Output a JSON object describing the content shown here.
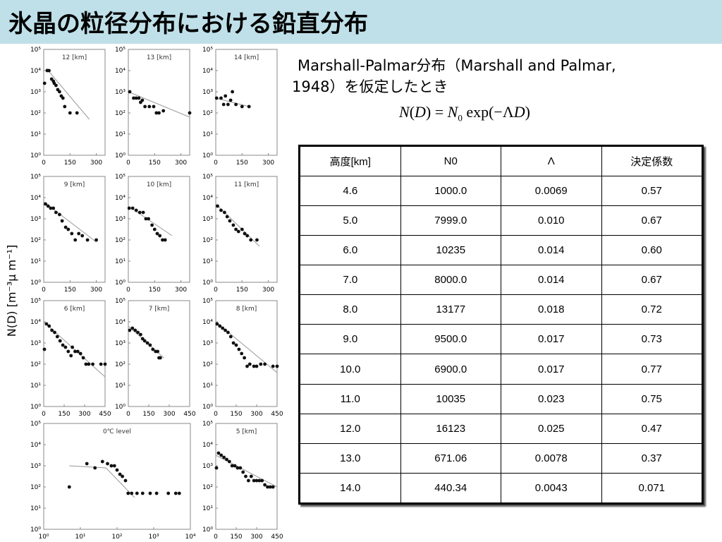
{
  "title": "氷晶の粒径分布における鉛直分布",
  "description": {
    "line1": "Marshall-Palmar分布（Marshall and Palmar,",
    "line2": "1948）を仮定したとき"
  },
  "formula": {
    "lhs_fn": "N",
    "lhs_arg": "D",
    "rhs_coef": "N",
    "rhs_sub": "0",
    "rhs_exp": "exp",
    "rhs_lambda": "Λ",
    "rhs_var": "D"
  },
  "table": {
    "headers": [
      "高度[km]",
      "N0",
      "Λ",
      "決定係数"
    ],
    "rows": [
      [
        "4.6",
        "1000.0",
        "0.0069",
        "0.57"
      ],
      [
        "5.0",
        "7999.0",
        "0.010",
        "0.67"
      ],
      [
        "6.0",
        "10235",
        "0.014",
        "0.60"
      ],
      [
        "7.0",
        "8000.0",
        "0.014",
        "0.67"
      ],
      [
        "8.0",
        "13177",
        "0.018",
        "0.72"
      ],
      [
        "9.0",
        "9500.0",
        "0.017",
        "0.73"
      ],
      [
        "10.0",
        "6900.0",
        "0.017",
        "0.77"
      ],
      [
        "11.0",
        "10035",
        "0.023",
        "0.75"
      ],
      [
        "12.0",
        "16123",
        "0.025",
        "0.47"
      ],
      [
        "13.0",
        "671.06",
        "0.0078",
        "0.37"
      ],
      [
        "14.0",
        "440.34",
        "0.0043",
        "0.071"
      ]
    ]
  },
  "chart_data": {
    "type": "scatter",
    "ylabel": "N(D) [m⁻³μ m⁻¹]",
    "y_scale": "log",
    "y_tick_labels": [
      "10⁰",
      "10¹",
      "10²",
      "10³",
      "10⁴",
      "10⁵"
    ],
    "panels": [
      {
        "label": "12 [km]",
        "x_scale": "linear",
        "xlim": [
          0,
          350
        ],
        "x_ticks": [
          "0",
          "150",
          "300"
        ],
        "points": [
          [
            5,
            3.4
          ],
          [
            20,
            4.0
          ],
          [
            30,
            4.0
          ],
          [
            45,
            3.6
          ],
          [
            55,
            3.5
          ],
          [
            60,
            3.4
          ],
          [
            70,
            3.3
          ],
          [
            80,
            3.1
          ],
          [
            90,
            3.0
          ],
          [
            100,
            2.8
          ],
          [
            110,
            2.7
          ],
          [
            120,
            2.3
          ],
          [
            150,
            2.0
          ],
          [
            190,
            2.0
          ]
        ],
        "fit": [
          [
            15,
            4.1
          ],
          [
            260,
            1.7
          ]
        ]
      },
      {
        "label": "13 [km]",
        "x_scale": "linear",
        "xlim": [
          0,
          350
        ],
        "x_ticks": [
          "0",
          "150",
          "300"
        ],
        "points": [
          [
            8,
            3.0
          ],
          [
            30,
            2.7
          ],
          [
            45,
            2.7
          ],
          [
            60,
            2.7
          ],
          [
            70,
            2.5
          ],
          [
            80,
            2.6
          ],
          [
            95,
            2.3
          ],
          [
            120,
            2.3
          ],
          [
            145,
            2.3
          ],
          [
            160,
            2.0
          ],
          [
            175,
            2.0
          ],
          [
            200,
            2.1
          ],
          [
            350,
            2.0
          ]
        ],
        "fit": [
          [
            0,
            3.0
          ],
          [
            350,
            1.8
          ]
        ]
      },
      {
        "label": "14 [km]",
        "x_scale": "linear",
        "xlim": [
          0,
          350
        ],
        "x_ticks": [
          "0",
          "150",
          "300"
        ],
        "points": [
          [
            5,
            2.7
          ],
          [
            30,
            2.7
          ],
          [
            45,
            2.4
          ],
          [
            55,
            2.8
          ],
          [
            70,
            2.4
          ],
          [
            85,
            2.6
          ],
          [
            95,
            3.0
          ],
          [
            115,
            2.4
          ],
          [
            150,
            2.3
          ],
          [
            190,
            2.3
          ]
        ],
        "fit": [
          [
            0,
            2.7
          ],
          [
            190,
            2.3
          ]
        ]
      },
      {
        "label": "9 [km]",
        "x_scale": "linear",
        "xlim": [
          0,
          350
        ],
        "x_ticks": [
          "0",
          "150",
          "300"
        ],
        "points": [
          [
            10,
            3.7
          ],
          [
            25,
            3.6
          ],
          [
            40,
            3.5
          ],
          [
            55,
            3.5
          ],
          [
            70,
            3.3
          ],
          [
            90,
            3.2
          ],
          [
            105,
            2.9
          ],
          [
            125,
            2.6
          ],
          [
            140,
            2.5
          ],
          [
            160,
            2.3
          ],
          [
            180,
            2.0
          ],
          [
            200,
            2.3
          ],
          [
            220,
            2.2
          ],
          [
            250,
            2.0
          ],
          [
            300,
            2.0
          ]
        ],
        "fit": [
          [
            0,
            3.8
          ],
          [
            300,
            1.9
          ]
        ]
      },
      {
        "label": "10 [km]",
        "x_scale": "linear",
        "xlim": [
          0,
          350
        ],
        "x_ticks": [
          "0",
          "150",
          "300"
        ],
        "points": [
          [
            5,
            3.5
          ],
          [
            25,
            3.5
          ],
          [
            45,
            3.4
          ],
          [
            65,
            3.3
          ],
          [
            85,
            3.3
          ],
          [
            100,
            3.0
          ],
          [
            115,
            3.0
          ],
          [
            135,
            2.7
          ],
          [
            150,
            2.5
          ],
          [
            165,
            2.3
          ],
          [
            180,
            2.2
          ],
          [
            195,
            2.0
          ],
          [
            210,
            2.0
          ]
        ],
        "fit": [
          [
            0,
            3.6
          ],
          [
            250,
            2.2
          ]
        ]
      },
      {
        "label": "11 [km]",
        "x_scale": "linear",
        "xlim": [
          0,
          350
        ],
        "x_ticks": [
          "0",
          "150",
          "300"
        ],
        "points": [
          [
            10,
            3.6
          ],
          [
            30,
            3.4
          ],
          [
            50,
            3.3
          ],
          [
            65,
            3.1
          ],
          [
            80,
            2.9
          ],
          [
            100,
            2.7
          ],
          [
            115,
            2.5
          ],
          [
            130,
            2.4
          ],
          [
            150,
            2.5
          ],
          [
            165,
            2.3
          ],
          [
            180,
            2.2
          ],
          [
            200,
            2.0
          ],
          [
            235,
            2.0
          ]
        ],
        "fit": [
          [
            0,
            3.7
          ],
          [
            250,
            1.7
          ]
        ]
      },
      {
        "label": "6 [km]",
        "x_scale": "linear",
        "xlim": [
          0,
          450
        ],
        "x_ticks": [
          "0",
          "150",
          "300",
          "450"
        ],
        "points": [
          [
            5,
            2.7
          ],
          [
            20,
            3.9
          ],
          [
            40,
            3.8
          ],
          [
            60,
            3.6
          ],
          [
            80,
            3.5
          ],
          [
            100,
            3.3
          ],
          [
            120,
            3.1
          ],
          [
            140,
            2.9
          ],
          [
            160,
            2.8
          ],
          [
            180,
            2.6
          ],
          [
            200,
            2.4
          ],
          [
            210,
            2.8
          ],
          [
            230,
            2.6
          ],
          [
            250,
            2.6
          ],
          [
            270,
            2.5
          ],
          [
            290,
            2.3
          ],
          [
            310,
            2.0
          ],
          [
            330,
            2.0
          ],
          [
            360,
            2.0
          ],
          [
            420,
            2.0
          ],
          [
            450,
            2.0
          ]
        ],
        "fit": [
          [
            0,
            4.0
          ],
          [
            450,
            1.4
          ]
        ]
      },
      {
        "label": "7 [km]",
        "x_scale": "linear",
        "xlim": [
          0,
          450
        ],
        "x_ticks": [
          "0",
          "150",
          "300",
          "450"
        ],
        "points": [
          [
            10,
            3.6
          ],
          [
            30,
            3.7
          ],
          [
            50,
            3.6
          ],
          [
            70,
            3.5
          ],
          [
            90,
            3.4
          ],
          [
            105,
            3.2
          ],
          [
            120,
            3.1
          ],
          [
            140,
            3.0
          ],
          [
            160,
            2.9
          ],
          [
            180,
            2.7
          ],
          [
            200,
            2.6
          ],
          [
            215,
            2.6
          ],
          [
            225,
            2.3
          ],
          [
            235,
            2.3
          ]
        ],
        "fit": [
          [
            0,
            3.8
          ],
          [
            260,
            2.3
          ]
        ]
      },
      {
        "label": "8 [km]",
        "x_scale": "linear",
        "xlim": [
          0,
          450
        ],
        "x_ticks": [
          "0",
          "150",
          "300",
          "450"
        ],
        "points": [
          [
            10,
            3.9
          ],
          [
            30,
            3.8
          ],
          [
            50,
            3.7
          ],
          [
            70,
            3.6
          ],
          [
            90,
            3.5
          ],
          [
            110,
            3.3
          ],
          [
            130,
            3.0
          ],
          [
            150,
            2.9
          ],
          [
            170,
            2.7
          ],
          [
            190,
            2.5
          ],
          [
            210,
            2.3
          ],
          [
            230,
            1.9
          ],
          [
            250,
            2.0
          ],
          [
            280,
            1.9
          ],
          [
            300,
            1.9
          ],
          [
            330,
            2.0
          ],
          [
            360,
            2.0
          ],
          [
            420,
            1.9
          ],
          [
            450,
            1.9
          ]
        ],
        "fit": [
          [
            0,
            4.0
          ],
          [
            450,
            1.6
          ]
        ]
      },
      {
        "label": "0℃ level",
        "x_scale": "log",
        "xlim": [
          1,
          10000
        ],
        "x_ticks": [
          "10⁰",
          "10¹",
          "10²",
          "10³",
          "10⁴"
        ],
        "points": [
          [
            5,
            2.0
          ],
          [
            15,
            3.1
          ],
          [
            25,
            2.9
          ],
          [
            40,
            3.2
          ],
          [
            55,
            3.1
          ],
          [
            70,
            3.0
          ],
          [
            85,
            3.0
          ],
          [
            100,
            2.8
          ],
          [
            120,
            2.6
          ],
          [
            140,
            2.5
          ],
          [
            170,
            2.3
          ],
          [
            200,
            1.7
          ],
          [
            250,
            1.7
          ],
          [
            350,
            1.7
          ],
          [
            500,
            1.7
          ],
          [
            800,
            1.7
          ],
          [
            1200,
            1.7
          ],
          [
            2500,
            1.7
          ],
          [
            4000,
            1.7
          ],
          [
            5000,
            1.7
          ]
        ],
        "fit": [
          [
            5,
            3.0
          ],
          [
            50,
            2.9
          ],
          [
            300,
            1.5
          ]
        ]
      },
      {
        "label": "5 [km]",
        "x_scale": "linear",
        "xlim": [
          0,
          450
        ],
        "x_ticks": [
          "0",
          "150",
          "300",
          "450"
        ],
        "points": [
          [
            5,
            2.9
          ],
          [
            20,
            3.6
          ],
          [
            40,
            3.5
          ],
          [
            60,
            3.4
          ],
          [
            80,
            3.3
          ],
          [
            100,
            3.2
          ],
          [
            120,
            3.0
          ],
          [
            140,
            3.0
          ],
          [
            160,
            2.9
          ],
          [
            180,
            2.9
          ],
          [
            200,
            2.7
          ],
          [
            220,
            2.5
          ],
          [
            240,
            2.3
          ],
          [
            260,
            2.5
          ],
          [
            280,
            2.3
          ],
          [
            300,
            2.3
          ],
          [
            320,
            2.3
          ],
          [
            340,
            2.3
          ],
          [
            360,
            2.1
          ],
          [
            380,
            2.0
          ],
          [
            400,
            2.0
          ],
          [
            420,
            2.0
          ]
        ],
        "fit": [
          [
            0,
            3.5
          ],
          [
            450,
            2.0
          ]
        ]
      }
    ]
  }
}
